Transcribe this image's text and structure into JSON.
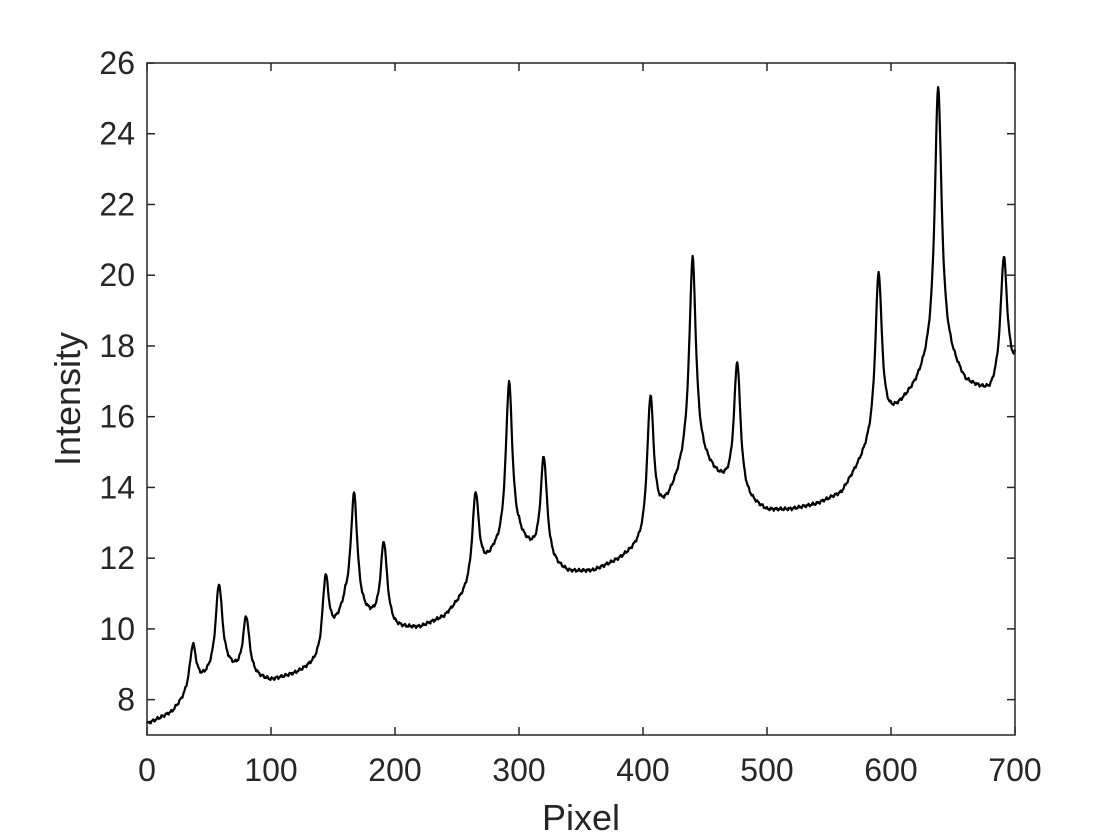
{
  "chart_data": {
    "type": "line",
    "title": "",
    "xlabel": "Pixel",
    "ylabel": "Intensity",
    "xlim": [
      0,
      700
    ],
    "ylim": [
      7,
      26
    ],
    "xticks": [
      0,
      100,
      200,
      300,
      400,
      500,
      600,
      700
    ],
    "yticks": [
      8,
      10,
      12,
      14,
      16,
      18,
      20,
      22,
      24,
      26
    ],
    "grid": false,
    "legend": "none",
    "line_color": "#000000",
    "series": [
      {
        "baseline": [
          [
            0,
            7.3
          ],
          [
            20,
            7.6
          ],
          [
            40,
            8.3
          ],
          [
            60,
            8.9
          ],
          [
            80,
            8.6
          ],
          [
            100,
            8.5
          ],
          [
            120,
            8.7
          ],
          [
            140,
            9.0
          ],
          [
            160,
            10.5
          ],
          [
            180,
            10.2
          ],
          [
            200,
            9.95
          ],
          [
            220,
            10.0
          ],
          [
            240,
            10.3
          ],
          [
            260,
            11.0
          ],
          [
            280,
            12.0
          ],
          [
            300,
            12.4
          ],
          [
            320,
            11.8
          ],
          [
            340,
            11.55
          ],
          [
            360,
            11.6
          ],
          [
            380,
            11.9
          ],
          [
            400,
            12.3
          ],
          [
            420,
            13.5
          ],
          [
            440,
            15.0
          ],
          [
            460,
            14.2
          ],
          [
            480,
            13.6
          ],
          [
            500,
            13.3
          ],
          [
            520,
            13.35
          ],
          [
            540,
            13.5
          ],
          [
            560,
            13.8
          ],
          [
            580,
            14.9
          ],
          [
            600,
            15.9
          ],
          [
            620,
            16.8
          ],
          [
            640,
            18.0
          ],
          [
            660,
            16.9
          ],
          [
            680,
            16.6
          ],
          [
            700,
            17.3
          ]
        ],
        "peaks": [
          {
            "x": 37,
            "y": 9.5
          },
          {
            "x": 58,
            "y": 11.2
          },
          {
            "x": 80,
            "y": 10.3
          },
          {
            "x": 144,
            "y": 11.45
          },
          {
            "x": 167,
            "y": 13.75
          },
          {
            "x": 191,
            "y": 12.4
          },
          {
            "x": 265,
            "y": 13.8
          },
          {
            "x": 292,
            "y": 16.9
          },
          {
            "x": 320,
            "y": 14.8
          },
          {
            "x": 406,
            "y": 16.55
          },
          {
            "x": 440,
            "y": 20.45
          },
          {
            "x": 476,
            "y": 17.5
          },
          {
            "x": 590,
            "y": 20.05
          },
          {
            "x": 638,
            "y": 25.3
          },
          {
            "x": 691,
            "y": 20.5
          }
        ],
        "end": {
          "x": 700,
          "y": 17.9
        }
      }
    ]
  }
}
